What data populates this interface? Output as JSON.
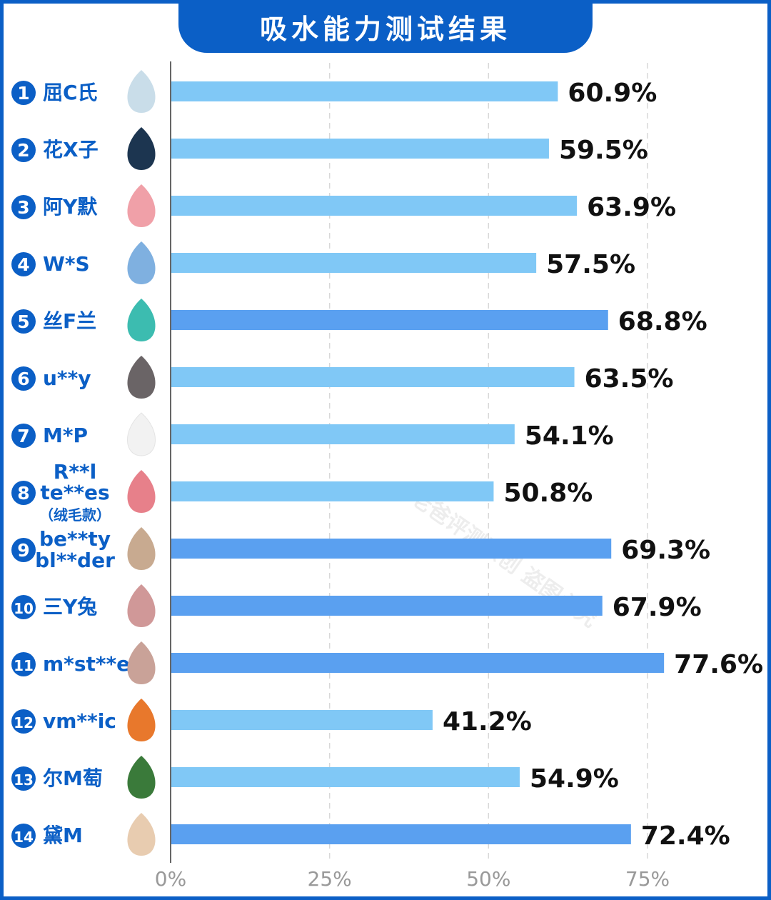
{
  "chart_data": {
    "type": "bar",
    "orientation": "horizontal",
    "title": "吸水能力测试结果",
    "categories": [
      "屈C氏",
      "花X子",
      "阿Y默",
      "W*S",
      "丝F兰",
      "u**y",
      "M*P",
      "R**l te**es（绒毛款）",
      "be**ty bl**der",
      "三Y兔",
      "m*st**e",
      "vm**ic",
      "尔M萄",
      "黛M"
    ],
    "category_lines": [
      [
        "屈C氏"
      ],
      [
        "花X子"
      ],
      [
        "阿Y默"
      ],
      [
        "W*S"
      ],
      [
        "丝F兰"
      ],
      [
        "u**y"
      ],
      [
        "M*P"
      ],
      [
        "R**l",
        "te**es",
        "（绒毛款）"
      ],
      [
        "be**ty",
        "bl**der"
      ],
      [
        "三Y兔"
      ],
      [
        "m*st**e"
      ],
      [
        "vm**ic"
      ],
      [
        "尔M萄"
      ],
      [
        "黛M"
      ]
    ],
    "ranks": [
      "1",
      "2",
      "3",
      "4",
      "5",
      "6",
      "7",
      "8",
      "9",
      "10",
      "11",
      "12",
      "13",
      "14"
    ],
    "values": [
      60.9,
      59.5,
      63.9,
      57.5,
      68.8,
      63.5,
      54.1,
      50.8,
      69.3,
      67.9,
      77.6,
      41.2,
      54.9,
      72.4
    ],
    "labels": [
      "60.9%",
      "59.5%",
      "63.9%",
      "57.5%",
      "68.8%",
      "63.5%",
      "54.1%",
      "50.8%",
      "69.3%",
      "67.9%",
      "77.6%",
      "41.2%",
      "54.9%",
      "72.4%"
    ],
    "highlighted": [
      false,
      false,
      false,
      false,
      true,
      false,
      false,
      false,
      true,
      true,
      true,
      false,
      false,
      true
    ],
    "sponge_colors": [
      "#c9dde9",
      "#1c3550",
      "#f0a0a8",
      "#7fb0e0",
      "#3cbcb0",
      "#6a6466",
      "#f2f2f2",
      "#e7808a",
      "#c8aa90",
      "#d09898",
      "#c9a298",
      "#e8782c",
      "#3a7a3a",
      "#e8ccb0"
    ],
    "xticks": [
      "0%",
      "25%",
      "50%",
      "75%"
    ],
    "xtick_values": [
      0,
      25,
      50,
      75
    ],
    "xlim": [
      0,
      92
    ],
    "grid": true,
    "xlabel": "",
    "ylabel": ""
  },
  "colors": {
    "frame": "#0b5fc6",
    "bar": "#80c8f6",
    "bar_highlight": "#5aa0f0",
    "label": "#0b5fc6",
    "value": "#111111"
  },
  "watermark": "老爸评测原创 盗图必究"
}
